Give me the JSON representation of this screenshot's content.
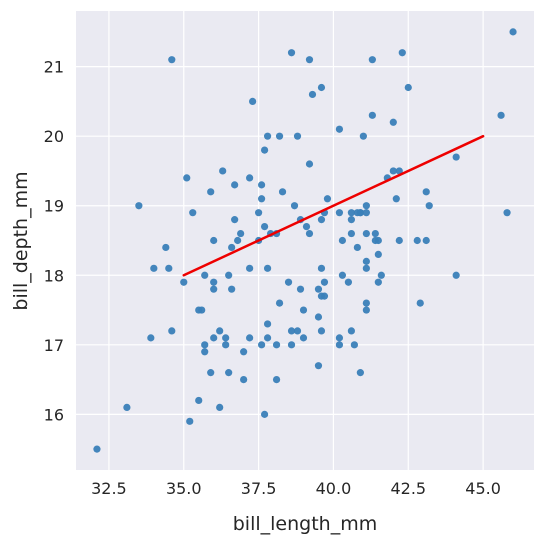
{
  "chart_data": {
    "type": "scatter",
    "title": "",
    "xlabel": "bill_length_mm",
    "ylabel": "bill_depth_mm",
    "xlim": [
      31.4,
      46.7
    ],
    "ylim": [
      15.2,
      21.8
    ],
    "xticks": [
      32.5,
      35.0,
      37.5,
      40.0,
      42.5,
      45.0
    ],
    "xtick_labels": [
      "32.5",
      "35.0",
      "37.5",
      "40.0",
      "42.5",
      "45.0"
    ],
    "yticks": [
      16,
      17,
      18,
      19,
      20,
      21
    ],
    "ytick_labels": [
      "16",
      "17",
      "18",
      "19",
      "20",
      "21"
    ],
    "grid": true,
    "colors": {
      "background": "#eaeaf2",
      "grid": "#ffffff",
      "points": "#3a7fb8",
      "line": "#ee0000"
    },
    "points": [
      [
        32.1,
        15.5
      ],
      [
        33.1,
        16.1
      ],
      [
        33.5,
        19.0
      ],
      [
        34.0,
        18.1
      ],
      [
        34.4,
        18.4
      ],
      [
        34.5,
        18.1
      ],
      [
        34.6,
        17.2
      ],
      [
        34.6,
        21.1
      ],
      [
        33.9,
        17.1
      ],
      [
        35.0,
        17.9
      ],
      [
        35.1,
        19.4
      ],
      [
        35.2,
        15.9
      ],
      [
        35.3,
        18.9
      ],
      [
        35.5,
        16.2
      ],
      [
        35.5,
        17.5
      ],
      [
        35.6,
        17.5
      ],
      [
        35.7,
        16.9
      ],
      [
        35.7,
        17.0
      ],
      [
        35.7,
        18.0
      ],
      [
        35.9,
        16.6
      ],
      [
        35.9,
        19.2
      ],
      [
        36.0,
        17.1
      ],
      [
        36.0,
        17.8
      ],
      [
        36.0,
        17.9
      ],
      [
        36.0,
        18.5
      ],
      [
        36.2,
        16.1
      ],
      [
        36.2,
        17.2
      ],
      [
        36.3,
        19.5
      ],
      [
        36.4,
        17.0
      ],
      [
        36.4,
        17.1
      ],
      [
        36.5,
        16.6
      ],
      [
        36.5,
        18.0
      ],
      [
        36.6,
        17.8
      ],
      [
        36.6,
        18.4
      ],
      [
        36.7,
        18.8
      ],
      [
        36.7,
        19.3
      ],
      [
        36.8,
        18.5
      ],
      [
        36.9,
        18.6
      ],
      [
        37.0,
        16.5
      ],
      [
        37.0,
        16.9
      ],
      [
        37.2,
        17.1
      ],
      [
        37.2,
        18.1
      ],
      [
        37.2,
        19.4
      ],
      [
        37.3,
        20.5
      ],
      [
        37.5,
        18.5
      ],
      [
        37.5,
        18.9
      ],
      [
        37.6,
        17.0
      ],
      [
        37.6,
        19.1
      ],
      [
        37.6,
        19.3
      ],
      [
        37.7,
        16.0
      ],
      [
        37.7,
        18.7
      ],
      [
        37.7,
        19.8
      ],
      [
        37.8,
        17.1
      ],
      [
        37.8,
        17.3
      ],
      [
        37.8,
        18.1
      ],
      [
        37.8,
        20.0
      ],
      [
        37.9,
        18.6
      ],
      [
        38.1,
        16.5
      ],
      [
        38.1,
        17.0
      ],
      [
        38.1,
        18.6
      ],
      [
        38.2,
        17.6
      ],
      [
        38.2,
        20.0
      ],
      [
        38.3,
        19.2
      ],
      [
        38.5,
        17.9
      ],
      [
        38.6,
        17.0
      ],
      [
        38.6,
        17.2
      ],
      [
        38.6,
        21.2
      ],
      [
        38.7,
        19.0
      ],
      [
        38.8,
        17.2
      ],
      [
        38.8,
        20.0
      ],
      [
        38.9,
        17.8
      ],
      [
        38.9,
        18.8
      ],
      [
        39.0,
        17.1
      ],
      [
        39.0,
        17.5
      ],
      [
        39.1,
        18.7
      ],
      [
        39.2,
        18.6
      ],
      [
        39.2,
        19.6
      ],
      [
        39.2,
        21.1
      ],
      [
        39.3,
        20.6
      ],
      [
        39.5,
        16.7
      ],
      [
        39.5,
        17.4
      ],
      [
        39.5,
        17.8
      ],
      [
        39.6,
        17.2
      ],
      [
        39.6,
        17.7
      ],
      [
        39.6,
        18.1
      ],
      [
        39.6,
        18.8
      ],
      [
        39.7,
        17.7
      ],
      [
        39.7,
        17.9
      ],
      [
        39.7,
        18.9
      ],
      [
        39.8,
        19.1
      ],
      [
        39.6,
        20.7
      ],
      [
        40.2,
        17.0
      ],
      [
        40.2,
        17.1
      ],
      [
        40.2,
        18.9
      ],
      [
        40.2,
        20.1
      ],
      [
        40.3,
        18.0
      ],
      [
        40.3,
        18.5
      ],
      [
        40.5,
        17.9
      ],
      [
        40.6,
        17.2
      ],
      [
        40.6,
        18.6
      ],
      [
        40.6,
        18.8
      ],
      [
        40.6,
        18.9
      ],
      [
        40.7,
        17.0
      ],
      [
        40.8,
        18.4
      ],
      [
        40.8,
        18.9
      ],
      [
        40.9,
        16.6
      ],
      [
        40.9,
        18.9
      ],
      [
        41.0,
        20.0
      ],
      [
        41.1,
        17.5
      ],
      [
        41.1,
        17.6
      ],
      [
        41.1,
        18.1
      ],
      [
        41.1,
        18.2
      ],
      [
        41.1,
        18.6
      ],
      [
        41.1,
        18.9
      ],
      [
        41.1,
        19.0
      ],
      [
        41.3,
        20.3
      ],
      [
        41.3,
        21.1
      ],
      [
        41.4,
        18.5
      ],
      [
        41.4,
        18.6
      ],
      [
        41.5,
        17.9
      ],
      [
        41.5,
        18.3
      ],
      [
        41.5,
        18.5
      ],
      [
        41.6,
        18.0
      ],
      [
        41.8,
        19.4
      ],
      [
        42.0,
        20.2
      ],
      [
        42.1,
        19.1
      ],
      [
        42.2,
        18.5
      ],
      [
        42.2,
        19.5
      ],
      [
        42.3,
        21.2
      ],
      [
        42.5,
        20.7
      ],
      [
        42.8,
        18.5
      ],
      [
        42.9,
        17.6
      ],
      [
        43.1,
        18.5
      ],
      [
        43.1,
        19.2
      ],
      [
        43.2,
        19.0
      ],
      [
        44.1,
        18.0
      ],
      [
        44.1,
        19.7
      ],
      [
        45.6,
        20.3
      ],
      [
        45.8,
        18.9
      ],
      [
        46.0,
        21.5
      ],
      [
        42.0,
        19.5
      ],
      [
        40.9,
        18.9
      ]
    ],
    "regression_line": {
      "x": [
        35.0,
        45.0
      ],
      "y": [
        18.0,
        20.0
      ]
    }
  }
}
